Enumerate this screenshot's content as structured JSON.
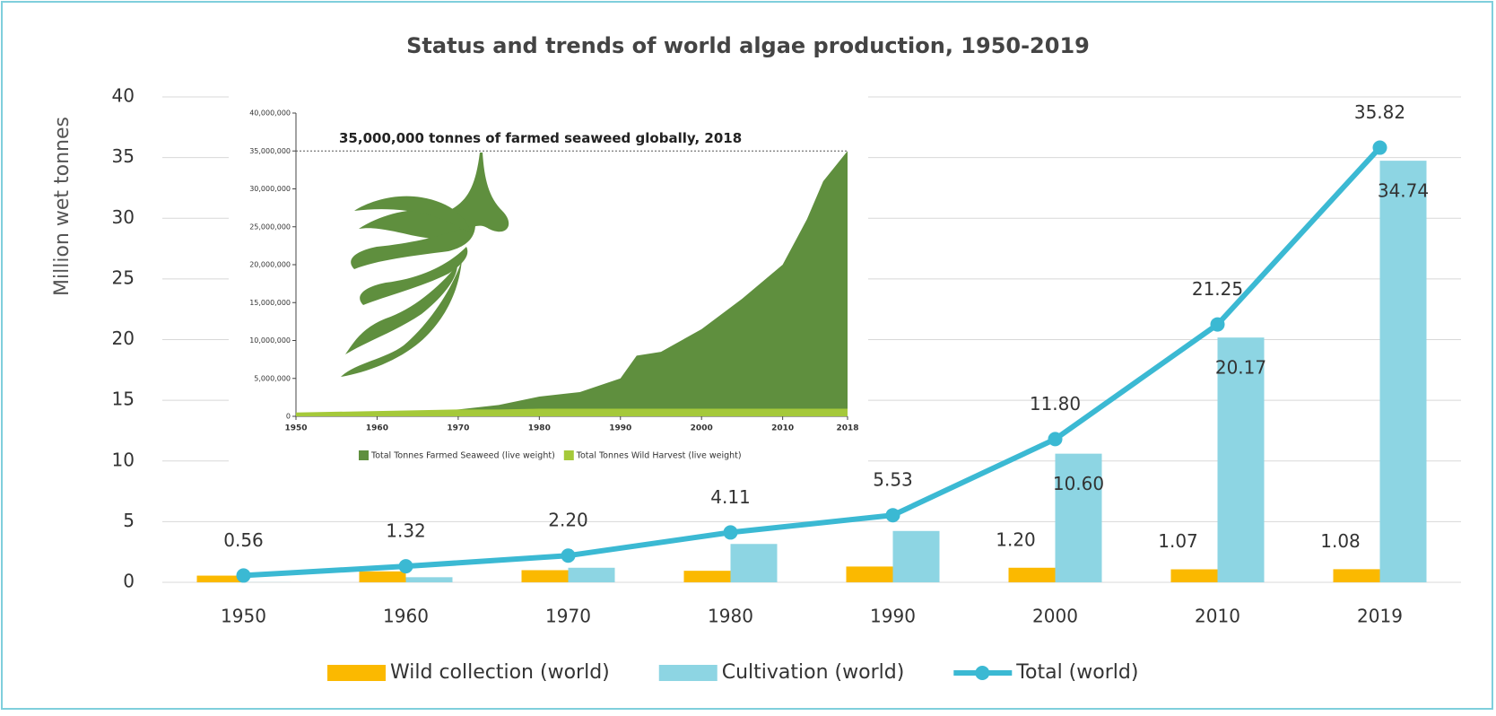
{
  "chart_data": [
    {
      "type": "bar",
      "title": "Status and trends of world algae production, 1950-2019",
      "y_label": "Million wet tonnes",
      "categories": [
        "1950",
        "1960",
        "1970",
        "1980",
        "1990",
        "2000",
        "2010",
        "2019"
      ],
      "series": [
        {
          "name": "Wild collection (world)",
          "type": "bar",
          "color": "#fbb900",
          "values": [
            0.55,
            0.9,
            1.0,
            0.95,
            1.3,
            1.2,
            1.07,
            1.08
          ],
          "value_labels": [
            null,
            null,
            null,
            null,
            null,
            "1.20",
            "1.07",
            "1.08"
          ]
        },
        {
          "name": "Cultivation (world)",
          "type": "bar",
          "color": "#8dd5e3",
          "values": [
            0.01,
            0.42,
            1.2,
            3.16,
            4.23,
            10.6,
            20.17,
            34.74
          ],
          "value_labels": [
            null,
            null,
            null,
            null,
            null,
            "10.60",
            "20.17",
            "34.74"
          ]
        },
        {
          "name": "Total (world)",
          "type": "line",
          "color": "#3bb9d3",
          "values": [
            0.56,
            1.32,
            2.2,
            4.11,
            5.53,
            11.8,
            21.25,
            35.82
          ],
          "value_labels": [
            "0.56",
            "1.32",
            "2.20",
            "4.11",
            "5.53",
            "11.80",
            "21.25",
            "35.82"
          ]
        }
      ],
      "ylim": [
        0,
        40
      ],
      "yticks": [
        0,
        5,
        10,
        15,
        20,
        25,
        30,
        35,
        40
      ],
      "grid": true,
      "legend": "bottom"
    },
    {
      "type": "area",
      "annotation": "35,000,000 tonnes of farmed seaweed globally, 2018",
      "hline": 35000000,
      "x": [
        1950,
        1955,
        1960,
        1965,
        1970,
        1975,
        1980,
        1985,
        1990,
        1992,
        1995,
        2000,
        2005,
        2010,
        2013,
        2015,
        2018
      ],
      "series": [
        {
          "name": "Total Tonnes Farmed Seaweed (live weight)",
          "color": "#5f8f3e",
          "values": [
            200000,
            300000,
            400000,
            600000,
            900000,
            1500000,
            2600000,
            3200000,
            5000000,
            8000000,
            8500000,
            11500000,
            15500000,
            20000000,
            26000000,
            31000000,
            35000000
          ]
        },
        {
          "name": "Total Tonnes Wild Harvest (live weight)",
          "color": "#a5c93a",
          "values": [
            500000,
            600000,
            700000,
            800000,
            900000,
            900000,
            1000000,
            1000000,
            1000000,
            1000000,
            1000000,
            1000000,
            1000000,
            1000000,
            1000000,
            1000000,
            1000000
          ]
        }
      ],
      "xlim": [
        1950,
        2018
      ],
      "xticks": [
        1950,
        1960,
        1970,
        1980,
        1990,
        2000,
        2010,
        2018
      ],
      "ylim": [
        0,
        40000000
      ],
      "yticks": [
        0,
        {
          "value": 5000000,
          "label": "5,000,000"
        },
        {
          "value": 10000000,
          "label": "10,000,000"
        },
        {
          "value": 15000000,
          "label": "15,000,000"
        },
        {
          "value": 20000000,
          "label": "20,000,000"
        },
        {
          "value": 25000000,
          "label": "25,000,000"
        },
        {
          "value": 30000000,
          "label": "30,000,000"
        },
        {
          "value": 35000000,
          "label": "35,000,000"
        },
        {
          "value": 40000000,
          "label": "40,000,000"
        }
      ],
      "legend": "bottom"
    }
  ]
}
